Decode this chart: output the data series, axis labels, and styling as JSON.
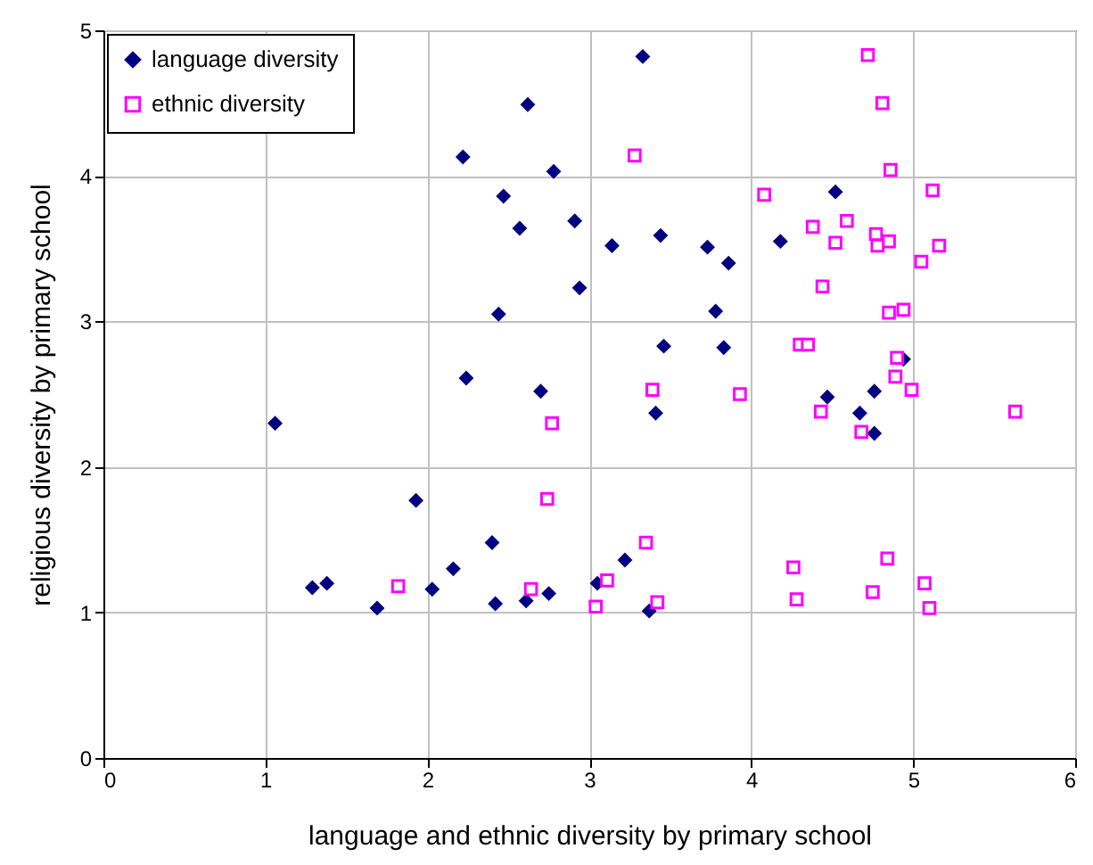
{
  "chart_data": {
    "type": "scatter",
    "xlabel": "language and ethnic diversity by primary school",
    "ylabel": "religious diversity by primary school",
    "xlim": [
      0,
      6
    ],
    "xticks": [
      0,
      1,
      2,
      3,
      4,
      5,
      6
    ],
    "ylim": [
      0,
      5
    ],
    "yticks": [
      0,
      1,
      2,
      3,
      4,
      5
    ],
    "grid": true,
    "legend": "top left",
    "series": [
      {
        "name": "language diversity",
        "color": "#000080",
        "marker": "diamond",
        "x": [
          3.33,
          2.62,
          2.22,
          2.78,
          2.47,
          2.91,
          2.57,
          2.94,
          2.44,
          2.24,
          2.7,
          4.52,
          3.14,
          3.44,
          3.73,
          3.86,
          4.18,
          3.78,
          3.46,
          3.83,
          4.94,
          4.47,
          4.76,
          3.41,
          4.67,
          4.76,
          3.22,
          3.05,
          3.37,
          1.06,
          1.93,
          1.29,
          1.38,
          1.69,
          2.03,
          2.16,
          2.4,
          2.42,
          2.61,
          2.75
        ],
        "values": [
          4.82,
          4.49,
          4.13,
          4.03,
          3.86,
          3.69,
          3.64,
          3.23,
          3.05,
          2.61,
          2.52,
          3.89,
          3.52,
          3.59,
          3.51,
          3.4,
          3.55,
          3.07,
          2.83,
          2.82,
          2.74,
          2.48,
          2.52,
          2.37,
          2.37,
          2.23,
          1.36,
          1.2,
          1.01,
          2.3,
          1.77,
          1.17,
          1.2,
          1.03,
          1.16,
          1.3,
          1.48,
          1.06,
          1.08,
          1.13
        ]
      },
      {
        "name": "ethnic diversity",
        "color": "#ff00ff",
        "marker": "square",
        "x": [
          4.72,
          4.81,
          3.28,
          4.86,
          5.12,
          4.08,
          4.59,
          4.38,
          4.77,
          4.85,
          4.52,
          4.78,
          5.16,
          5.05,
          4.44,
          4.94,
          4.85,
          4.3,
          4.35,
          4.9,
          4.89,
          4.99,
          3.39,
          3.93,
          4.43,
          4.68,
          5.63,
          3.35,
          3.11,
          3.04,
          3.42,
          4.26,
          4.28,
          4.84,
          4.75,
          5.07,
          5.1,
          2.77,
          2.74,
          1.82,
          2.64
        ],
        "values": [
          4.83,
          4.5,
          4.14,
          4.04,
          3.9,
          3.87,
          3.69,
          3.65,
          3.6,
          3.55,
          3.54,
          3.52,
          3.52,
          3.41,
          3.24,
          3.08,
          3.06,
          2.84,
          2.84,
          2.75,
          2.62,
          2.53,
          2.53,
          2.5,
          2.38,
          2.24,
          2.38,
          1.48,
          1.22,
          1.04,
          1.07,
          1.31,
          1.09,
          1.37,
          1.14,
          1.2,
          1.03,
          2.3,
          1.78,
          1.18,
          1.16
        ]
      }
    ]
  }
}
